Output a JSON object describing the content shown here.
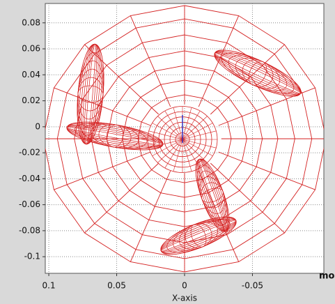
{
  "chart_data": {
    "type": "wireframe",
    "x_label": "X-axis",
    "edge_label": "mo",
    "xlim": [
      0.1026,
      -0.1026
    ],
    "xticks": [
      0.1,
      0.05,
      0,
      -0.05
    ],
    "ylim": [
      -0.1128,
      0.0949
    ],
    "yticks": [
      0.08,
      0.06,
      0.04,
      0.02,
      0,
      -0.02,
      -0.04,
      -0.06,
      -0.08,
      -0.1
    ],
    "grid": true,
    "color": "#d42020"
  }
}
